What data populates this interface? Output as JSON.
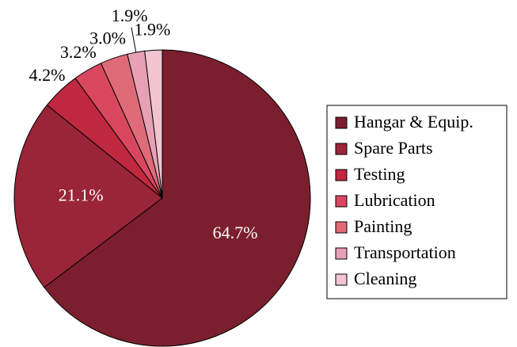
{
  "chart_data": {
    "type": "pie",
    "categories": [
      "Hangar & Equip.",
      "Spare Parts",
      "Testing",
      "Lubrication",
      "Painting",
      "Transportation",
      "Cleaning"
    ],
    "values": [
      64.7,
      21.1,
      4.2,
      3.2,
      3.0,
      1.9,
      1.9
    ],
    "value_labels": [
      "64.7%",
      "21.1%",
      "4.2%",
      "3.2%",
      "3.0%",
      "1.9%",
      "1.9%"
    ],
    "colors": [
      "#7b1f2e",
      "#9a2438",
      "#c0283f",
      "#d9475f",
      "#e06b78",
      "#e8a0b4",
      "#f2c4d2"
    ],
    "legend": "right"
  }
}
